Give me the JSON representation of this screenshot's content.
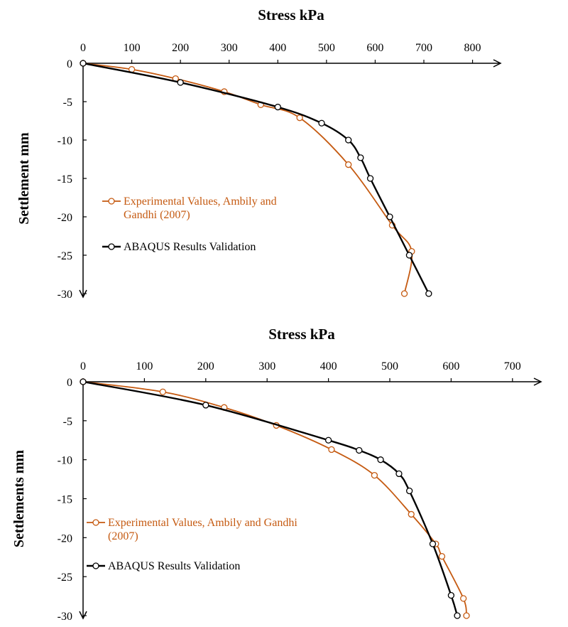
{
  "chart_data": [
    {
      "type": "line",
      "title": "Stress kPa",
      "xlabel": "Stress kPa",
      "ylabel": "Settlement  mm",
      "xlim": [
        0,
        850
      ],
      "ylim": [
        -30,
        0
      ],
      "x_ticks": [
        "0",
        "100",
        "200",
        "300",
        "400",
        "500",
        "600",
        "700",
        "800"
      ],
      "y_ticks": [
        "0",
        "-5",
        "-10",
        "-15",
        "-20",
        "-25",
        "-30"
      ],
      "x_axis_position": "top",
      "grid": false,
      "legend_position": "left-middle",
      "series": [
        {
          "name": "Experimental Values,  Ambily and Gandhi (2007)",
          "legend_lines": [
            "Experimental Values,  Ambily and",
            "Gandhi (2007)"
          ],
          "color": "#c55a11",
          "points": [
            [
              0,
              0
            ],
            [
              100,
              -0.8
            ],
            [
              190,
              -2.0
            ],
            [
              290,
              -3.7
            ],
            [
              365,
              -5.4
            ],
            [
              445,
              -7.1
            ],
            [
              545,
              -13.2
            ],
            [
              635,
              -21.1
            ],
            [
              675,
              -24.5
            ],
            [
              660,
              -30.0
            ]
          ]
        },
        {
          "name": "ABAQUS Results Validation",
          "legend_lines": [
            "ABAQUS Results Validation"
          ],
          "color": "#000000",
          "points": [
            [
              0,
              0
            ],
            [
              200,
              -2.5
            ],
            [
              400,
              -5.7
            ],
            [
              490,
              -7.8
            ],
            [
              545,
              -10.0
            ],
            [
              570,
              -12.3
            ],
            [
              590,
              -15.0
            ],
            [
              630,
              -20.0
            ],
            [
              670,
              -25.0
            ],
            [
              710,
              -30.0
            ]
          ]
        }
      ]
    },
    {
      "type": "line",
      "title": "Stress  kPa",
      "xlabel": "Stress  kPa",
      "ylabel": "Settlements  mm",
      "xlim": [
        0,
        750
      ],
      "ylim": [
        -30,
        0
      ],
      "x_ticks": [
        "0",
        "100",
        "200",
        "300",
        "400",
        "500",
        "600",
        "700"
      ],
      "y_ticks": [
        "0",
        "-5",
        "-10",
        "-15",
        "-20",
        "-25",
        "-30"
      ],
      "x_axis_position": "top",
      "grid": false,
      "legend_position": "left-bottom",
      "series": [
        {
          "name": "Experimental Values, Ambily and Gandhi (2007)",
          "legend_lines": [
            "Experimental Values, Ambily and Gandhi",
            "(2007)"
          ],
          "color": "#c55a11",
          "points": [
            [
              0,
              0
            ],
            [
              130,
              -1.3
            ],
            [
              230,
              -3.3
            ],
            [
              315,
              -5.6
            ],
            [
              405,
              -8.7
            ],
            [
              475,
              -12.0
            ],
            [
              535,
              -17.0
            ],
            [
              575,
              -20.8
            ],
            [
              585,
              -22.4
            ],
            [
              620,
              -27.8
            ],
            [
              625,
              -30.0
            ]
          ]
        },
        {
          "name": "ABAQUS Results Validation",
          "legend_lines": [
            "ABAQUS Results Validation"
          ],
          "color": "#000000",
          "points": [
            [
              0,
              0
            ],
            [
              200,
              -3.0
            ],
            [
              400,
              -7.5
            ],
            [
              450,
              -8.8
            ],
            [
              485,
              -10.0
            ],
            [
              515,
              -11.8
            ],
            [
              532,
              -14.0
            ],
            [
              570,
              -20.8
            ],
            [
              600,
              -27.4
            ],
            [
              610,
              -30.0
            ]
          ]
        }
      ]
    }
  ]
}
